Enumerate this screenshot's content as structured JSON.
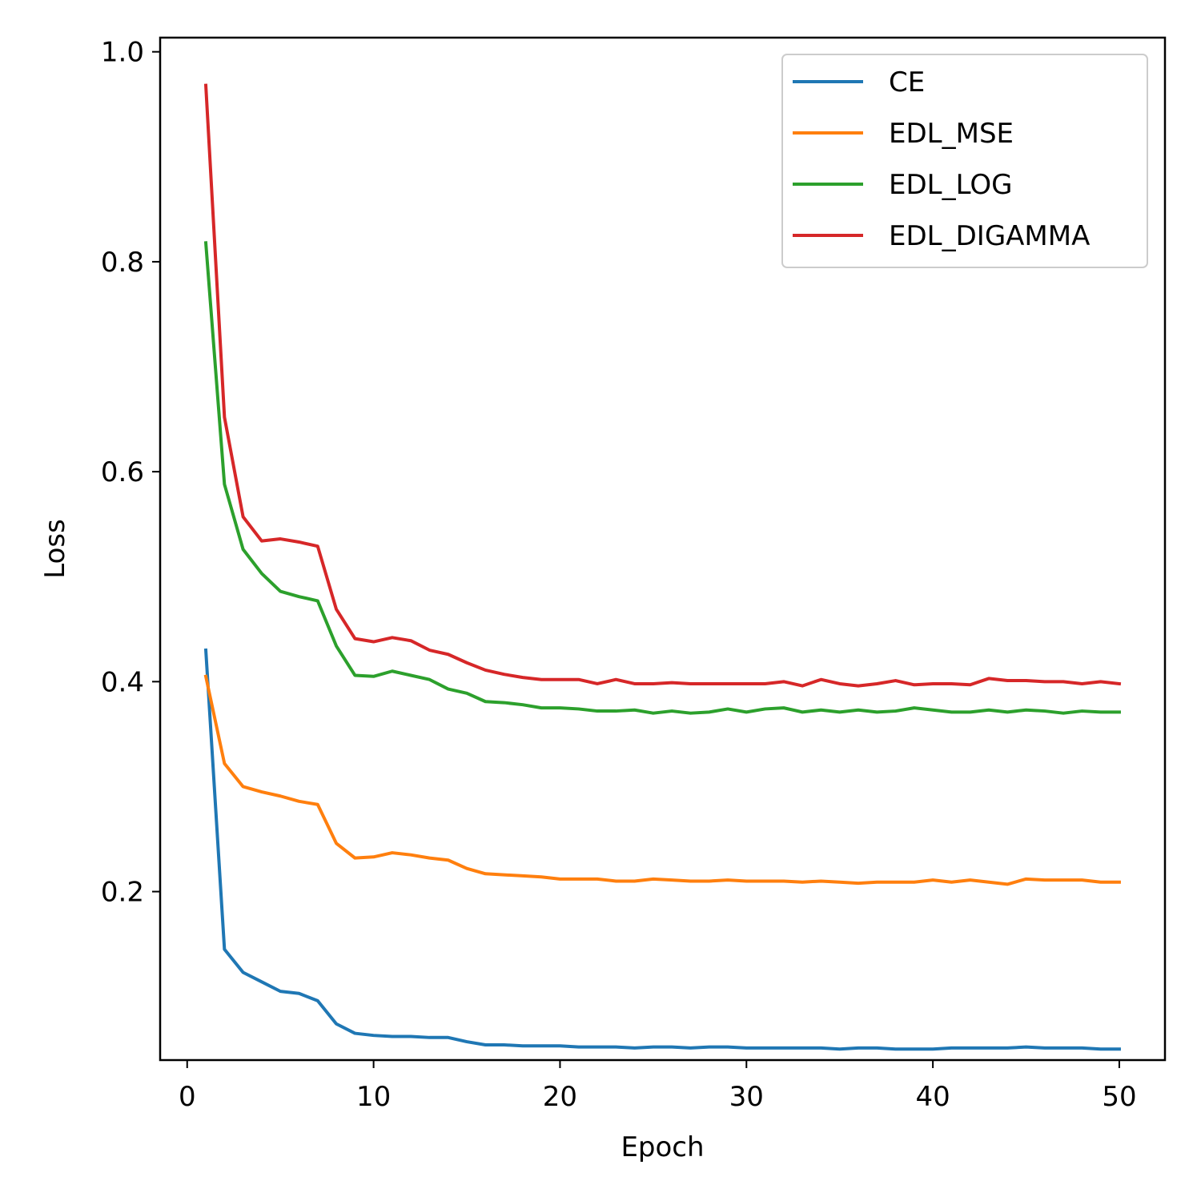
{
  "chart_data": {
    "type": "line",
    "xlabel": "Epoch",
    "ylabel": "Loss",
    "xlim": [
      -1.45,
      52.45
    ],
    "ylim": [
      0.0395,
      1.0135
    ],
    "xticks": [
      0,
      10,
      20,
      30,
      40,
      50
    ],
    "xtick_labels": [
      "0",
      "10",
      "20",
      "30",
      "40",
      "50"
    ],
    "yticks": [
      0.2,
      0.4,
      0.6,
      0.8,
      1.0
    ],
    "ytick_labels": [
      "0.2",
      "0.4",
      "0.6",
      "0.8",
      "1.0"
    ],
    "grid": false,
    "legend_position": "top-right",
    "x": [
      1,
      2,
      3,
      4,
      5,
      6,
      7,
      8,
      9,
      10,
      11,
      12,
      13,
      14,
      15,
      16,
      17,
      18,
      19,
      20,
      21,
      22,
      23,
      24,
      25,
      26,
      27,
      28,
      29,
      30,
      31,
      32,
      33,
      34,
      35,
      36,
      37,
      38,
      39,
      40,
      41,
      42,
      43,
      44,
      45,
      46,
      47,
      48,
      49,
      50
    ],
    "series": [
      {
        "name": "CE",
        "color": "#1f77b4",
        "values": [
          0.43,
          0.145,
          0.123,
          0.114,
          0.105,
          0.103,
          0.096,
          0.074,
          0.065,
          0.063,
          0.062,
          0.062,
          0.061,
          0.061,
          0.057,
          0.054,
          0.054,
          0.053,
          0.053,
          0.053,
          0.052,
          0.052,
          0.052,
          0.051,
          0.052,
          0.052,
          0.051,
          0.052,
          0.052,
          0.051,
          0.051,
          0.051,
          0.051,
          0.051,
          0.05,
          0.051,
          0.051,
          0.05,
          0.05,
          0.05,
          0.051,
          0.051,
          0.051,
          0.051,
          0.052,
          0.051,
          0.051,
          0.051,
          0.05,
          0.05
        ]
      },
      {
        "name": "EDL_MSE",
        "color": "#ff7f0e",
        "values": [
          0.405,
          0.322,
          0.3,
          0.295,
          0.291,
          0.286,
          0.283,
          0.246,
          0.232,
          0.233,
          0.237,
          0.235,
          0.232,
          0.23,
          0.222,
          0.217,
          0.216,
          0.215,
          0.214,
          0.212,
          0.212,
          0.212,
          0.21,
          0.21,
          0.212,
          0.211,
          0.21,
          0.21,
          0.211,
          0.21,
          0.21,
          0.21,
          0.209,
          0.21,
          0.209,
          0.208,
          0.209,
          0.209,
          0.209,
          0.211,
          0.209,
          0.211,
          0.209,
          0.207,
          0.212,
          0.211,
          0.211,
          0.211,
          0.209,
          0.209
        ]
      },
      {
        "name": "EDL_LOG",
        "color": "#2ca02c",
        "values": [
          0.818,
          0.588,
          0.526,
          0.503,
          0.486,
          0.481,
          0.477,
          0.434,
          0.406,
          0.405,
          0.41,
          0.406,
          0.402,
          0.393,
          0.389,
          0.381,
          0.38,
          0.378,
          0.375,
          0.375,
          0.374,
          0.372,
          0.372,
          0.373,
          0.37,
          0.372,
          0.37,
          0.371,
          0.374,
          0.371,
          0.374,
          0.375,
          0.371,
          0.373,
          0.371,
          0.373,
          0.371,
          0.372,
          0.375,
          0.373,
          0.371,
          0.371,
          0.373,
          0.371,
          0.373,
          0.372,
          0.37,
          0.372,
          0.371,
          0.371
        ]
      },
      {
        "name": "EDL_DIGAMMA",
        "color": "#d62728",
        "values": [
          0.968,
          0.652,
          0.557,
          0.534,
          0.536,
          0.533,
          0.529,
          0.469,
          0.441,
          0.438,
          0.442,
          0.439,
          0.43,
          0.426,
          0.418,
          0.411,
          0.407,
          0.404,
          0.402,
          0.402,
          0.402,
          0.398,
          0.402,
          0.398,
          0.398,
          0.399,
          0.398,
          0.398,
          0.398,
          0.398,
          0.398,
          0.4,
          0.396,
          0.402,
          0.398,
          0.396,
          0.398,
          0.401,
          0.397,
          0.398,
          0.398,
          0.397,
          0.403,
          0.401,
          0.401,
          0.4,
          0.4,
          0.398,
          0.4,
          0.398
        ]
      }
    ]
  }
}
